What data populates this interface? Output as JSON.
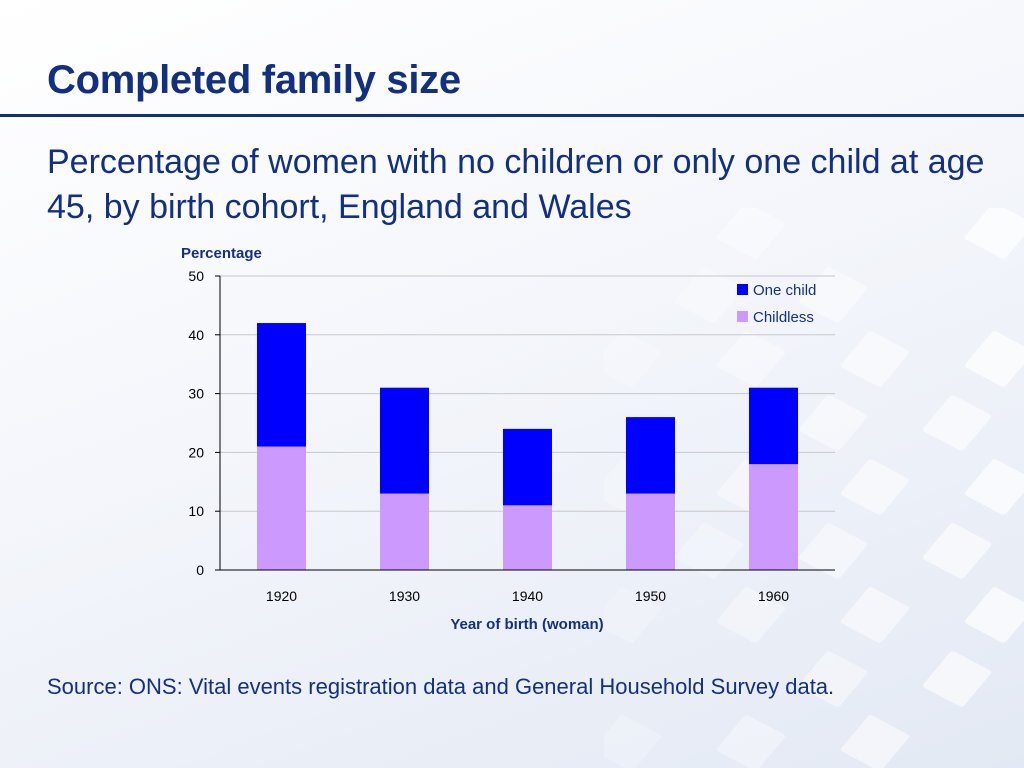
{
  "slide": {
    "title": "Completed family size",
    "subtitle": "Percentage of women with no children or only one child at age 45, by birth cohort, England and Wales",
    "source": "Source: ONS: Vital events registration data and General Household Survey data."
  },
  "chart_data": {
    "type": "bar",
    "stacked": true,
    "categories": [
      "1920",
      "1930",
      "1940",
      "1950",
      "1960"
    ],
    "series": [
      {
        "name": "Childless",
        "values": [
          21,
          13,
          11,
          13,
          18
        ],
        "color": "#cc99ff"
      },
      {
        "name": "One child",
        "values": [
          21,
          18,
          13,
          13,
          13
        ],
        "color": "#0000ff"
      }
    ],
    "title": "",
    "xlabel": "Year of birth (woman)",
    "ylabel": "Percentage",
    "ylim": [
      0,
      50
    ],
    "yticks": [
      0,
      10,
      20,
      30,
      40,
      50
    ],
    "grid": true,
    "legend": "top-right"
  },
  "colors": {
    "title": "#13307f",
    "axis_text": "#000000"
  }
}
